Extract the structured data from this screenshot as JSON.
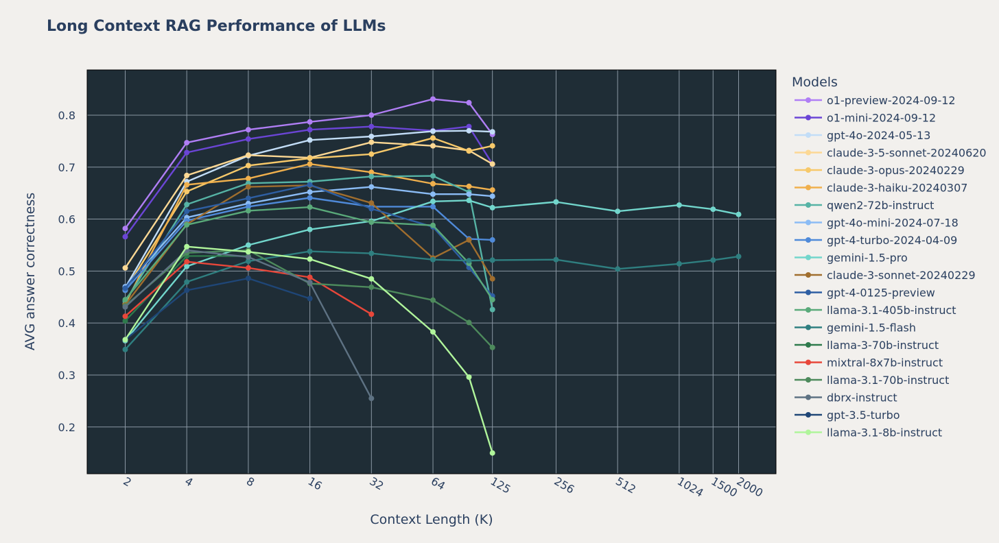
{
  "chart_data": {
    "type": "line",
    "title": "Long Context RAG Performance of LLMs",
    "xlabel": "Context Length (K)",
    "ylabel": "AVG answer correctness",
    "x_scale": "log",
    "x_ticks": [
      2,
      4,
      8,
      16,
      32,
      64,
      125,
      256,
      512,
      1024,
      1500,
      2000
    ],
    "x_tick_labels": [
      "2",
      "4",
      "8",
      "16",
      "32",
      "64",
      "125",
      "256",
      "512",
      "1024",
      "1500",
      "2000"
    ],
    "ylim": [
      0.11,
      0.887
    ],
    "y_ticks": [
      0.2,
      0.3,
      0.4,
      0.5,
      0.6,
      0.7,
      0.8
    ],
    "y_tick_labels": [
      "0.2",
      "0.3",
      "0.4",
      "0.5",
      "0.6",
      "0.7",
      "0.8"
    ],
    "grid": true,
    "plot_background": "#1f2d36",
    "grid_color": "#8a97a3",
    "legend_title": "Models",
    "legend_position": "right",
    "series": [
      {
        "name": "o1-preview-2024-09-12",
        "color": "#b07ef5",
        "x": [
          2,
          4,
          8,
          16,
          32,
          64,
          96,
          125
        ],
        "y": [
          0.582,
          0.747,
          0.772,
          0.787,
          0.8,
          0.831,
          0.824,
          0.763
        ]
      },
      {
        "name": "o1-mini-2024-09-12",
        "color": "#6b45d6",
        "x": [
          2,
          4,
          8,
          16,
          32,
          64,
          96,
          125
        ],
        "y": [
          0.566,
          0.728,
          0.754,
          0.772,
          0.778,
          0.77,
          0.778,
          0.706
        ]
      },
      {
        "name": "gpt-4o-2024-05-13",
        "color": "#c2ddf7",
        "x": [
          2,
          4,
          8,
          16,
          32,
          64,
          96,
          125
        ],
        "y": [
          0.468,
          0.672,
          0.722,
          0.752,
          0.759,
          0.769,
          0.77,
          0.768
        ]
      },
      {
        "name": "claude-3-5-sonnet-20240620",
        "color": "#fcd894",
        "x": [
          2,
          4,
          8,
          16,
          32,
          64,
          96,
          125
        ],
        "y": [
          0.506,
          0.684,
          0.723,
          0.718,
          0.748,
          0.741,
          0.732,
          0.706
        ]
      },
      {
        "name": "claude-3-opus-20240229",
        "color": "#f7c96a",
        "x": [
          2,
          4,
          8,
          16,
          32,
          64,
          96,
          125
        ],
        "y": [
          0.463,
          0.653,
          0.703,
          0.717,
          0.725,
          0.756,
          0.731,
          0.741
        ]
      },
      {
        "name": "claude-3-haiku-20240307",
        "color": "#f0b04d",
        "x": [
          2,
          4,
          8,
          16,
          32,
          64,
          96,
          125
        ],
        "y": [
          0.437,
          0.666,
          0.678,
          0.706,
          0.69,
          0.668,
          0.663,
          0.656
        ]
      },
      {
        "name": "qwen2-72b-instruct",
        "color": "#56b3a5",
        "x": [
          2,
          4,
          8,
          16,
          32,
          64,
          96,
          125
        ],
        "y": [
          0.442,
          0.628,
          0.669,
          0.672,
          0.682,
          0.683,
          0.652,
          0.426
        ]
      },
      {
        "name": "gpt-4o-mini-2024-07-18",
        "color": "#8bbcf5",
        "x": [
          2,
          4,
          8,
          16,
          32,
          64,
          96,
          125
        ],
        "y": [
          0.47,
          0.603,
          0.63,
          0.652,
          0.662,
          0.648,
          0.648,
          0.644
        ]
      },
      {
        "name": "gpt-4-turbo-2024-04-09",
        "color": "#4f8ad9",
        "x": [
          2,
          4,
          8,
          16,
          32,
          64,
          96,
          125
        ],
        "y": [
          0.463,
          0.597,
          0.624,
          0.641,
          0.624,
          0.624,
          0.562,
          0.56
        ]
      },
      {
        "name": "gemini-1.5-pro",
        "color": "#72d6cc",
        "x": [
          2,
          4,
          8,
          16,
          32,
          64,
          96,
          125,
          256,
          512,
          1024,
          1500,
          2000
        ],
        "y": [
          0.366,
          0.509,
          0.55,
          0.58,
          0.596,
          0.634,
          0.636,
          0.622,
          0.633,
          0.615,
          0.627,
          0.619,
          0.609
        ]
      },
      {
        "name": "claude-3-sonnet-20240229",
        "color": "#a06e2e",
        "x": [
          2,
          4,
          8,
          16,
          32,
          64,
          96,
          125
        ],
        "y": [
          0.435,
          0.59,
          0.662,
          0.665,
          0.631,
          0.525,
          0.56,
          0.485
        ]
      },
      {
        "name": "gpt-4-0125-preview",
        "color": "#2e5fa3",
        "x": [
          2,
          4,
          8,
          16,
          32,
          64,
          96,
          125
        ],
        "y": [
          0.467,
          0.615,
          0.64,
          0.666,
          0.62,
          0.585,
          0.507,
          0.452
        ]
      },
      {
        "name": "llama-3.1-405b-instruct",
        "color": "#5aaa7a",
        "x": [
          2,
          4,
          8,
          16,
          32,
          64,
          96,
          125
        ],
        "y": [
          0.445,
          0.589,
          0.616,
          0.623,
          0.594,
          0.588,
          0.515,
          0.445
        ]
      },
      {
        "name": "gemini-1.5-flash",
        "color": "#2f7f80",
        "x": [
          2,
          4,
          8,
          16,
          32,
          64,
          96,
          125,
          256,
          512,
          1024,
          1500,
          2000
        ],
        "y": [
          0.349,
          0.479,
          0.519,
          0.538,
          0.534,
          0.522,
          0.52,
          0.521,
          0.522,
          0.504,
          0.514,
          0.521,
          0.528
        ]
      },
      {
        "name": "llama-3-70b-instruct",
        "color": "#2e7a4c",
        "x": [
          2,
          4,
          8
        ],
        "y": [
          0.404,
          0.529,
          0.529
        ]
      },
      {
        "name": "mixtral-8x7b-instruct",
        "color": "#e8473a",
        "x": [
          2,
          4,
          8,
          16,
          32
        ],
        "y": [
          0.413,
          0.518,
          0.506,
          0.488,
          0.417
        ]
      },
      {
        "name": "llama-3.1-70b-instruct",
        "color": "#4d8a5c",
        "x": [
          2,
          4,
          8,
          16,
          32,
          64,
          96,
          125
        ],
        "y": [
          0.433,
          0.535,
          0.54,
          0.476,
          0.469,
          0.444,
          0.401,
          0.353
        ]
      },
      {
        "name": "dbrx-instruct",
        "color": "#5e7283",
        "x": [
          2,
          4,
          8,
          16,
          32
        ],
        "y": [
          0.431,
          0.54,
          0.527,
          0.478,
          0.255
        ]
      },
      {
        "name": "gpt-3.5-turbo",
        "color": "#1f4677",
        "x": [
          2,
          4,
          8,
          16
        ],
        "y": [
          0.368,
          0.463,
          0.486,
          0.447
        ]
      },
      {
        "name": "llama-3.1-8b-instruct",
        "color": "#b0f59b",
        "x": [
          2,
          4,
          8,
          16,
          32,
          64,
          96,
          125
        ],
        "y": [
          0.368,
          0.547,
          0.537,
          0.523,
          0.485,
          0.383,
          0.296,
          0.15
        ]
      }
    ]
  }
}
